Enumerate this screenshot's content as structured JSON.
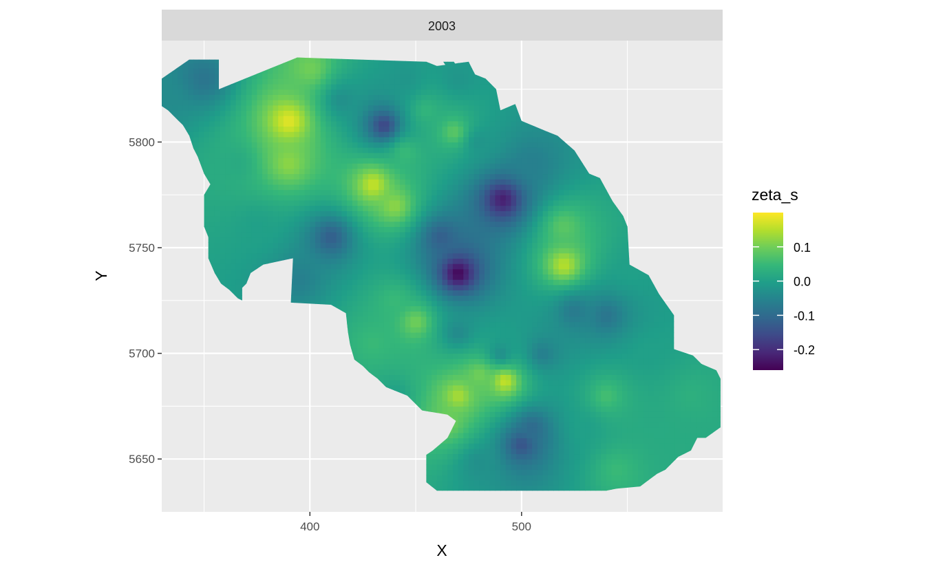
{
  "chart_data": {
    "type": "heatmap",
    "facet": "2003",
    "xlabel": "X",
    "ylabel": "Y",
    "xlim": [
      330,
      595
    ],
    "ylim": [
      5625,
      5848
    ],
    "x_breaks": [
      400,
      500
    ],
    "x_minor": [
      350,
      450,
      550
    ],
    "y_breaks": [
      5650,
      5700,
      5750,
      5800
    ],
    "y_minor": [
      5675,
      5725,
      5775,
      5825
    ],
    "grid": true,
    "legend": {
      "title": "zeta_s",
      "position": "right",
      "range": [
        -0.26,
        0.2
      ],
      "breaks": [
        {
          "value": 0.1,
          "label": "0.1"
        },
        {
          "value": 0.0,
          "label": "0.0"
        },
        {
          "value": -0.1,
          "label": "-0.1"
        },
        {
          "value": -0.2,
          "label": "-0.2"
        }
      ],
      "palette": [
        "#440154",
        "#482878",
        "#3E4A89",
        "#31688E",
        "#26828E",
        "#1F9E89",
        "#35B779",
        "#6DCD59",
        "#B4DE2C",
        "#FDE725"
      ]
    },
    "outline": [
      [
        343,
        5839
      ],
      [
        357,
        5839
      ],
      [
        357,
        5825
      ],
      [
        394,
        5840
      ],
      [
        455,
        5838
      ],
      [
        460,
        5836
      ],
      [
        475,
        5838
      ],
      [
        478,
        5832
      ],
      [
        483,
        5830
      ],
      [
        488,
        5825
      ],
      [
        490,
        5815
      ],
      [
        497,
        5818
      ],
      [
        500,
        5810
      ],
      [
        512,
        5805
      ],
      [
        517,
        5803
      ],
      [
        525,
        5796
      ],
      [
        532,
        5785
      ],
      [
        537,
        5783
      ],
      [
        543,
        5772
      ],
      [
        548,
        5765
      ],
      [
        550,
        5760
      ],
      [
        551,
        5742
      ],
      [
        560,
        5737
      ],
      [
        565,
        5728
      ],
      [
        572,
        5718
      ],
      [
        572,
        5702
      ],
      [
        581,
        5699
      ],
      [
        585,
        5695
      ],
      [
        592,
        5692
      ],
      [
        594,
        5688
      ],
      [
        594,
        5665
      ],
      [
        587,
        5660
      ],
      [
        583,
        5660
      ],
      [
        580,
        5654
      ],
      [
        574,
        5651
      ],
      [
        568,
        5645
      ],
      [
        564,
        5643
      ],
      [
        560,
        5640
      ],
      [
        556,
        5637
      ],
      [
        545,
        5636
      ],
      [
        540,
        5635
      ],
      [
        524,
        5635
      ],
      [
        478,
        5635
      ],
      [
        460,
        5635
      ],
      [
        455,
        5639
      ],
      [
        455,
        5652
      ],
      [
        458,
        5654
      ],
      [
        465,
        5660
      ],
      [
        469,
        5668
      ],
      [
        465,
        5671
      ],
      [
        453,
        5673
      ],
      [
        446,
        5680
      ],
      [
        436,
        5684
      ],
      [
        432,
        5688
      ],
      [
        428,
        5691
      ],
      [
        425,
        5694
      ],
      [
        421,
        5697
      ],
      [
        419,
        5704
      ],
      [
        418,
        5710
      ],
      [
        417,
        5719
      ],
      [
        410,
        5723
      ],
      [
        391,
        5724
      ],
      [
        392,
        5745
      ],
      [
        378,
        5742
      ],
      [
        372,
        5738
      ],
      [
        370,
        5733
      ],
      [
        368,
        5731
      ],
      [
        368,
        5725
      ],
      [
        366,
        5726
      ],
      [
        362,
        5730
      ],
      [
        358,
        5733
      ],
      [
        355,
        5738
      ],
      [
        352,
        5745
      ],
      [
        352,
        5755
      ],
      [
        350,
        5760
      ],
      [
        350,
        5775
      ],
      [
        353,
        5780
      ],
      [
        350,
        5785
      ],
      [
        347,
        5793
      ],
      [
        345,
        5797
      ],
      [
        343,
        5803
      ],
      [
        340,
        5808
      ],
      [
        337,
        5811
      ],
      [
        333,
        5815
      ],
      [
        330,
        5817
      ],
      [
        330,
        5830
      ]
    ],
    "outline_note": "",
    "strip": [
      [
        463,
        5838
      ],
      [
        468,
        5838
      ],
      [
        472,
        5832
      ],
      [
        477,
        5830
      ],
      [
        473,
        5826
      ],
      [
        467,
        5832
      ]
    ],
    "anchors": [
      [
        350,
        5830,
        -0.08
      ],
      [
        390,
        5810,
        0.18
      ],
      [
        390,
        5790,
        0.12
      ],
      [
        400,
        5835,
        0.1
      ],
      [
        415,
        5820,
        -0.03
      ],
      [
        435,
        5808,
        -0.16
      ],
      [
        445,
        5830,
        -0.02
      ],
      [
        455,
        5815,
        0.04
      ],
      [
        468,
        5805,
        0.08
      ],
      [
        445,
        5795,
        0.05
      ],
      [
        430,
        5780,
        0.16
      ],
      [
        440,
        5770,
        0.12
      ],
      [
        410,
        5755,
        -0.12
      ],
      [
        395,
        5735,
        -0.06
      ],
      [
        375,
        5760,
        0.0
      ],
      [
        365,
        5790,
        0.02
      ],
      [
        470,
        5738,
        -0.25
      ],
      [
        462,
        5755,
        -0.12
      ],
      [
        491,
        5773,
        -0.22
      ],
      [
        505,
        5790,
        -0.06
      ],
      [
        480,
        5800,
        -0.02
      ],
      [
        520,
        5760,
        0.08
      ],
      [
        520,
        5742,
        0.15
      ],
      [
        525,
        5720,
        -0.07
      ],
      [
        540,
        5718,
        -0.08
      ],
      [
        510,
        5700,
        -0.06
      ],
      [
        490,
        5700,
        -0.03
      ],
      [
        470,
        5710,
        -0.04
      ],
      [
        450,
        5715,
        0.1
      ],
      [
        440,
        5725,
        0.05
      ],
      [
        430,
        5705,
        0.05
      ],
      [
        440,
        5680,
        0.0
      ],
      [
        480,
        5690,
        0.1
      ],
      [
        492,
        5687,
        0.16
      ],
      [
        470,
        5680,
        0.14
      ],
      [
        465,
        5668,
        0.1
      ],
      [
        500,
        5657,
        -0.14
      ],
      [
        505,
        5665,
        -0.1
      ],
      [
        480,
        5648,
        -0.03
      ],
      [
        530,
        5665,
        0.0
      ],
      [
        540,
        5680,
        0.06
      ],
      [
        560,
        5700,
        0.0
      ],
      [
        580,
        5680,
        0.03
      ],
      [
        575,
        5655,
        0.02
      ],
      [
        545,
        5645,
        0.05
      ],
      [
        552,
        5740,
        0.0
      ],
      [
        470,
        5830,
        -0.02
      ],
      [
        330,
        5820,
        -0.04
      ]
    ]
  }
}
